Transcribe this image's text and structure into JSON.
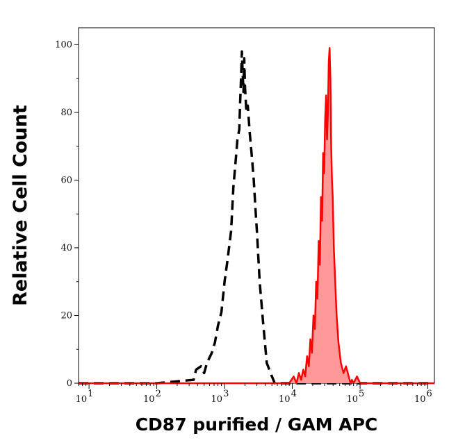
{
  "chart_data": {
    "type": "area",
    "xlabel": "CD87 purified / GAM APC",
    "ylabel": "Relative Cell Count",
    "x_scale": "log",
    "xlim": [
      7,
      1250000
    ],
    "ylim": [
      0,
      105
    ],
    "x_ticks": [
      {
        "base": "10",
        "exp": "1",
        "value": 10
      },
      {
        "base": "10",
        "exp": "2",
        "value": 100
      },
      {
        "base": "10",
        "exp": "3",
        "value": 1000
      },
      {
        "base": "10",
        "exp": "4",
        "value": 10000
      },
      {
        "base": "10",
        "exp": "5",
        "value": 100000
      },
      {
        "base": "10",
        "exp": "6",
        "value": 1000000
      }
    ],
    "y_ticks": [
      "0",
      "20",
      "40",
      "60",
      "80",
      "100"
    ],
    "grid": false,
    "legend": "none",
    "series": [
      {
        "style": "dashed",
        "color": "#000000",
        "fill": "none",
        "x": [
          7,
          100,
          350,
          380,
          450,
          500,
          550,
          650,
          720,
          800,
          900,
          1000,
          1100,
          1250,
          1350,
          1450,
          1550,
          1650,
          1700,
          1750,
          1800,
          1850,
          1900,
          1950,
          2000,
          2100,
          2200,
          2350,
          2500,
          2700,
          2850,
          3000,
          3300,
          3700,
          4200,
          5000,
          5500,
          1250000
        ],
        "y": [
          0,
          0,
          1,
          4,
          5,
          3,
          6,
          9,
          12,
          17,
          21,
          30,
          36,
          45,
          58,
          65,
          72,
          75,
          83,
          90,
          98,
          92,
          86,
          96,
          88,
          80,
          82,
          74,
          68,
          60,
          52,
          45,
          30,
          18,
          6,
          2,
          0,
          0
        ]
      },
      {
        "style": "solid",
        "color": "#ff0000",
        "fill": "#ff9999",
        "x": [
          7,
          9000,
          10500,
          11500,
          12500,
          13500,
          14500,
          15500,
          16500,
          17500,
          18500,
          19500,
          20500,
          21500,
          22500,
          23500,
          24500,
          25500,
          26500,
          27500,
          28500,
          29500,
          30500,
          31500,
          32500,
          33500,
          34500,
          35500,
          36500,
          37500,
          38500,
          39500,
          41000,
          43000,
          45000,
          48000,
          52000,
          57000,
          62000,
          68000,
          72000,
          76000,
          80000,
          90000,
          100000,
          110000,
          1250000
        ],
        "y": [
          0,
          0,
          2,
          0,
          3,
          1,
          4,
          2,
          8,
          5,
          13,
          9,
          20,
          16,
          30,
          25,
          42,
          35,
          55,
          48,
          68,
          62,
          78,
          85,
          72,
          80,
          95,
          99,
          90,
          70,
          60,
          55,
          40,
          30,
          20,
          12,
          6,
          3,
          5,
          2,
          0,
          1,
          0,
          2,
          0,
          0,
          0
        ]
      }
    ]
  }
}
